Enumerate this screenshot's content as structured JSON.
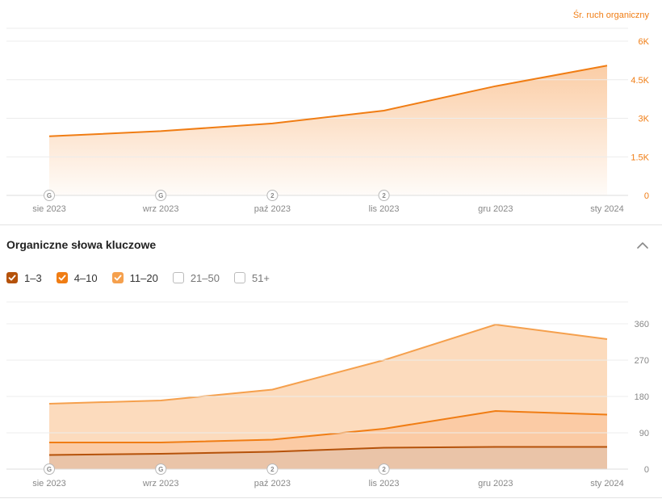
{
  "traffic_panel": {
    "axis_title": "Śr. ruch organiczny",
    "title_color": "#f07d14"
  },
  "keywords_panel": {
    "title": "Organiczne słowa kluczowe",
    "collapse_icon": "chevron-up-icon",
    "legend": [
      {
        "label": "1–3",
        "checked": true,
        "color": "#b5520a"
      },
      {
        "label": "4–10",
        "checked": true,
        "color": "#f07d14"
      },
      {
        "label": "11–20",
        "checked": true,
        "color": "#f5a04d"
      },
      {
        "label": "21–50",
        "checked": false,
        "color": "#bbbbbb"
      },
      {
        "label": "51+",
        "checked": false,
        "color": "#bbbbbb"
      }
    ]
  },
  "chart_data": [
    {
      "type": "area",
      "title": "",
      "x": [
        "sie 2023",
        "wrz 2023",
        "paź 2023",
        "lis 2023",
        "gru 2023",
        "sty 2024"
      ],
      "xlabel": "",
      "ylabel": "Śr. ruch organiczny",
      "y_axis_side": "right",
      "yticks": [
        "0",
        "1.5K",
        "3K",
        "4.5K",
        "6K"
      ],
      "ylim": [
        0,
        6000
      ],
      "grid": true,
      "series": [
        {
          "values": [
            2300,
            2500,
            2800,
            3300,
            4250,
            5050
          ],
          "color": "#f07d14"
        }
      ],
      "annotations": [
        {
          "x": "sie 2023",
          "label": "G"
        },
        {
          "x": "wrz 2023",
          "label": "G"
        },
        {
          "x": "paź 2023",
          "label": "2"
        },
        {
          "x": "lis 2023",
          "label": "2"
        }
      ]
    },
    {
      "type": "area",
      "title": "Organiczne słowa kluczowe",
      "x": [
        "sie 2023",
        "wrz 2023",
        "paź 2023",
        "lis 2023",
        "gru 2023",
        "sty 2024"
      ],
      "xlabel": "",
      "ylabel": "",
      "y_axis_side": "right",
      "yticks": [
        "0",
        "90",
        "180",
        "270",
        "360"
      ],
      "ylim": [
        0,
        360
      ],
      "stacked": true,
      "grid": true,
      "series": [
        {
          "name": "1–3",
          "values": [
            35,
            38,
            43,
            53,
            55,
            55
          ],
          "color": "#b5520a"
        },
        {
          "name": "4–10",
          "values": [
            31,
            28,
            30,
            47,
            89,
            80
          ],
          "color": "#f07d14"
        },
        {
          "name": "11–20",
          "values": [
            96,
            104,
            124,
            170,
            214,
            187
          ],
          "color": "#f5a04d"
        }
      ],
      "annotations": [
        {
          "x": "sie 2023",
          "label": "G"
        },
        {
          "x": "wrz 2023",
          "label": "G"
        },
        {
          "x": "paź 2023",
          "label": "2"
        },
        {
          "x": "lis 2023",
          "label": "2"
        }
      ]
    }
  ]
}
